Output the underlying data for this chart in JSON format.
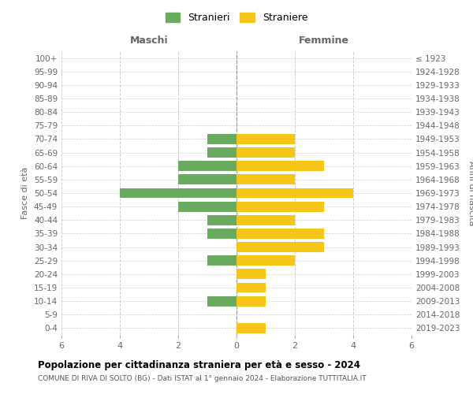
{
  "age_groups": [
    "100+",
    "95-99",
    "90-94",
    "85-89",
    "80-84",
    "75-79",
    "70-74",
    "65-69",
    "60-64",
    "55-59",
    "50-54",
    "45-49",
    "40-44",
    "35-39",
    "30-34",
    "25-29",
    "20-24",
    "15-19",
    "10-14",
    "5-9",
    "0-4"
  ],
  "birth_years": [
    "≤ 1923",
    "1924-1928",
    "1929-1933",
    "1934-1938",
    "1939-1943",
    "1944-1948",
    "1949-1953",
    "1954-1958",
    "1959-1963",
    "1964-1968",
    "1969-1973",
    "1974-1978",
    "1979-1983",
    "1984-1988",
    "1989-1993",
    "1994-1998",
    "1999-2003",
    "2004-2008",
    "2009-2013",
    "2014-2018",
    "2019-2023"
  ],
  "males": [
    0,
    0,
    0,
    0,
    0,
    0,
    1,
    1,
    2,
    2,
    4,
    2,
    1,
    1,
    0,
    1,
    0,
    0,
    1,
    0,
    0
  ],
  "females": [
    0,
    0,
    0,
    0,
    0,
    0,
    2,
    2,
    3,
    2,
    4,
    3,
    2,
    3,
    3,
    2,
    1,
    1,
    1,
    0,
    1
  ],
  "male_color": "#6aaa5e",
  "female_color": "#f5c518",
  "title_main": "Popolazione per cittadinanza straniera per età e sesso - 2024",
  "title_sub": "COMUNE DI RIVA DI SOLTO (BG) - Dati ISTAT al 1° gennaio 2024 - Elaborazione TUTTITALIA.IT",
  "legend_male": "Stranieri",
  "legend_female": "Straniere",
  "xlabel_left": "Maschi",
  "xlabel_right": "Femmine",
  "ylabel_left": "Fasce di età",
  "ylabel_right": "Anni di nascita",
  "xlim": 6,
  "bar_height": 0.75,
  "background_color": "#ffffff",
  "grid_color": "#cccccc",
  "axis_label_color": "#666666"
}
